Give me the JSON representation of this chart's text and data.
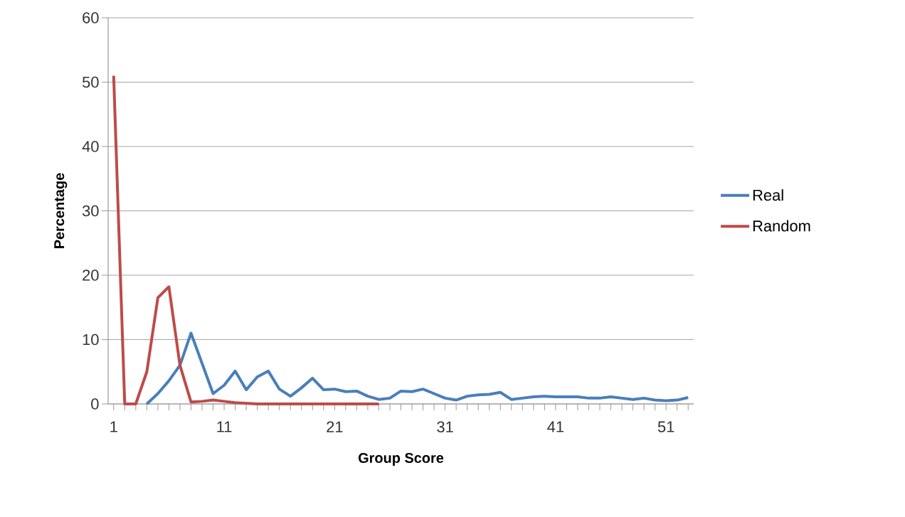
{
  "chart_data": {
    "type": "line",
    "xlabel": "Group Score",
    "ylabel": "Percentage",
    "categories": [
      "1",
      null,
      null,
      null,
      null,
      null,
      null,
      null,
      null,
      null,
      "11",
      null,
      null,
      null,
      null,
      null,
      null,
      null,
      null,
      null,
      "21",
      null,
      null,
      null,
      null,
      null,
      null,
      null,
      null,
      null,
      "31",
      null,
      null,
      null,
      null,
      null,
      null,
      null,
      null,
      null,
      "41",
      null,
      null,
      null,
      null,
      null,
      null,
      null,
      null,
      null,
      "51",
      null,
      null
    ],
    "series": [
      {
        "name": "Real",
        "color": "#4a7ebb",
        "values": [
          null,
          null,
          null,
          0,
          1.6,
          3.6,
          6,
          11,
          6.3,
          1.6,
          2.9,
          5.1,
          2.2,
          4.2,
          5.1,
          2.3,
          1.2,
          2.5,
          4,
          2.2,
          2.3,
          1.9,
          2,
          1.2,
          0.7,
          0.9,
          2,
          1.9,
          2.3,
          1.6,
          0.9,
          0.6,
          1.2,
          1.4,
          1.5,
          1.8,
          0.7,
          0.9,
          1.1,
          1.2,
          1.1,
          1.1,
          1.1,
          0.9,
          0.9,
          1.1,
          0.9,
          0.7,
          0.9,
          0.6,
          0.5,
          0.6,
          1
        ]
      },
      {
        "name": "Random",
        "color": "#be4b48",
        "values": [
          51,
          0,
          0,
          5,
          16.5,
          18.2,
          6,
          0.3,
          0.4,
          0.6,
          0.4,
          0.2,
          0.1,
          0,
          0,
          0,
          0,
          0,
          0,
          0,
          0,
          0,
          0,
          0,
          0,
          null,
          null,
          null,
          null,
          null,
          null,
          null,
          null,
          null,
          null,
          null,
          null,
          null,
          null,
          null,
          null,
          null,
          null,
          null,
          null,
          null,
          null,
          null,
          null,
          null,
          null,
          null,
          null
        ]
      }
    ],
    "ylim": [
      0,
      60
    ],
    "yticks": [
      0,
      10,
      20,
      30,
      40,
      50,
      60
    ],
    "grid": "y",
    "legend": "right",
    "marker": "none",
    "line_style": "solid"
  }
}
